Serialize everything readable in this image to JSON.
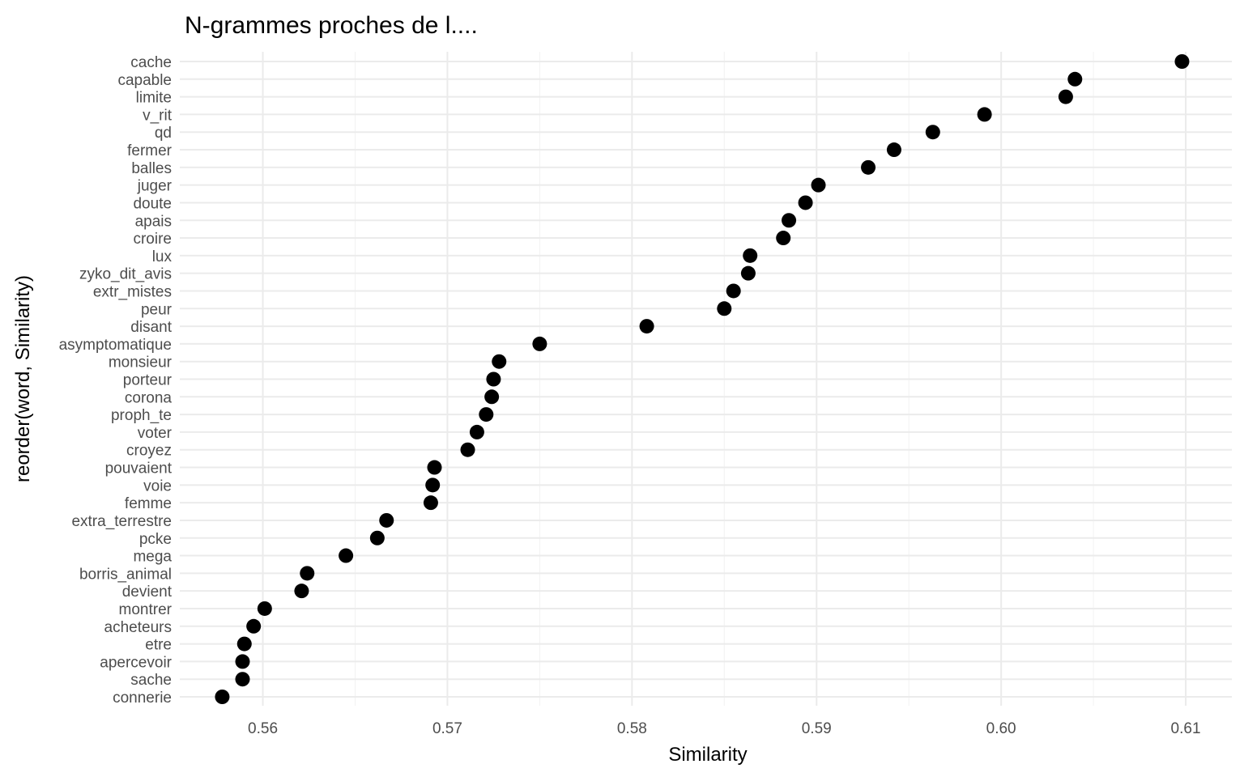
{
  "chart_data": {
    "type": "scatter",
    "title": "N-grammes proches de l....",
    "xlabel": "Similarity",
    "ylabel": "reorder(word, Similarity)",
    "xlim": [
      0.5555,
      0.6125
    ],
    "xticks": [
      "0.56",
      "0.57",
      "0.58",
      "0.59",
      "0.60",
      "0.61"
    ],
    "xtick_values": [
      0.56,
      0.57,
      0.58,
      0.59,
      0.6,
      0.61
    ],
    "grid": true,
    "legend": "none",
    "point_color": "#000000",
    "points": [
      {
        "word": "cache",
        "similarity": 0.6098
      },
      {
        "word": "capable",
        "similarity": 0.604
      },
      {
        "word": "limite",
        "similarity": 0.6035
      },
      {
        "word": "v_rit",
        "similarity": 0.5991
      },
      {
        "word": "qd",
        "similarity": 0.5963
      },
      {
        "word": "fermer",
        "similarity": 0.5942
      },
      {
        "word": "balles",
        "similarity": 0.5928
      },
      {
        "word": "juger",
        "similarity": 0.5901
      },
      {
        "word": "doute",
        "similarity": 0.5894
      },
      {
        "word": "apais",
        "similarity": 0.5885
      },
      {
        "word": "croire",
        "similarity": 0.5882
      },
      {
        "word": "lux",
        "similarity": 0.5864
      },
      {
        "word": "zyko_dit_avis",
        "similarity": 0.5863
      },
      {
        "word": "extr_mistes",
        "similarity": 0.5855
      },
      {
        "word": "peur",
        "similarity": 0.585
      },
      {
        "word": "disant",
        "similarity": 0.5808
      },
      {
        "word": "asymptomatique",
        "similarity": 0.575
      },
      {
        "word": "monsieur",
        "similarity": 0.5728
      },
      {
        "word": "porteur",
        "similarity": 0.5725
      },
      {
        "word": "corona",
        "similarity": 0.5724
      },
      {
        "word": "proph_te",
        "similarity": 0.5721
      },
      {
        "word": "voter",
        "similarity": 0.5716
      },
      {
        "word": "croyez",
        "similarity": 0.5711
      },
      {
        "word": "pouvaient",
        "similarity": 0.5693
      },
      {
        "word": "voie",
        "similarity": 0.5692
      },
      {
        "word": "femme",
        "similarity": 0.5691
      },
      {
        "word": "extra_terrestre",
        "similarity": 0.5667
      },
      {
        "word": "pcke",
        "similarity": 0.5662
      },
      {
        "word": "mega",
        "similarity": 0.5645
      },
      {
        "word": "borris_animal",
        "similarity": 0.5624
      },
      {
        "word": "devient",
        "similarity": 0.5621
      },
      {
        "word": "montrer",
        "similarity": 0.5601
      },
      {
        "word": "acheteurs",
        "similarity": 0.5595
      },
      {
        "word": "etre",
        "similarity": 0.559
      },
      {
        "word": "apercevoir",
        "similarity": 0.5589
      },
      {
        "word": "sache",
        "similarity": 0.5589
      },
      {
        "word": "connerie",
        "similarity": 0.5578
      }
    ]
  }
}
